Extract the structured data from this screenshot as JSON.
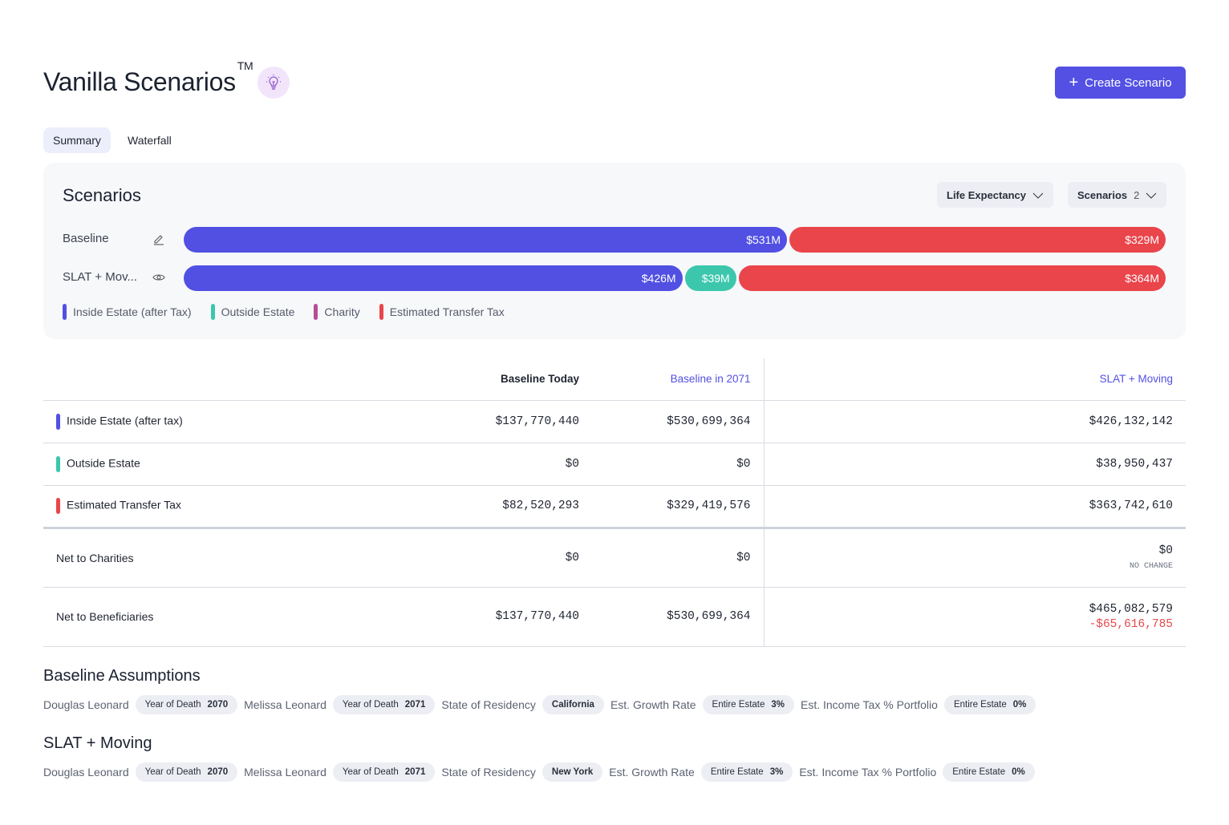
{
  "header": {
    "title": "Vanilla Scenarios",
    "tm": "TM",
    "create_label": "Create Scenario"
  },
  "tabs": [
    {
      "label": "Summary",
      "active": true
    },
    {
      "label": "Waterfall",
      "active": false
    }
  ],
  "panel": {
    "title": "Scenarios",
    "life_expectancy": "Life Expectancy",
    "scenarios_label": "Scenarios",
    "scenarios_count": "2",
    "rows": [
      {
        "label": "Baseline",
        "icon": "pencil-icon",
        "segments": [
          {
            "value": 531,
            "label": "$531M",
            "color": "#5150e3"
          },
          {
            "value": 329,
            "label": "$329M",
            "color": "#e9454b"
          }
        ]
      },
      {
        "label": "SLAT + Mov...",
        "icon": "eye-icon",
        "segments": [
          {
            "value": 426,
            "label": "$426M",
            "color": "#5150e3"
          },
          {
            "value": 39,
            "label": "$39M",
            "color": "#3cc7ad"
          },
          {
            "value": 364,
            "label": "$364M",
            "color": "#e9454b"
          }
        ]
      }
    ],
    "legend": [
      {
        "label": "Inside Estate (after Tax)",
        "color": "#5150e3"
      },
      {
        "label": "Outside Estate",
        "color": "#3cc7ad"
      },
      {
        "label": "Charity",
        "color": "#b44f96"
      },
      {
        "label": "Estimated Transfer Tax",
        "color": "#e9454b"
      }
    ]
  },
  "table": {
    "headers": [
      "Baseline Today",
      "Baseline in 2071",
      "SLAT + Moving"
    ],
    "rows": [
      {
        "label": "Inside Estate (after tax)",
        "color": "#5150e3",
        "values": [
          "$137,770,440",
          "$530,699,364",
          "$426,132,142"
        ]
      },
      {
        "label": "Outside Estate",
        "color": "#3cc7ad",
        "values": [
          "$0",
          "$0",
          "$38,950,437"
        ]
      },
      {
        "label": "Estimated Transfer Tax",
        "color": "#e9454b",
        "values": [
          "$82,520,293",
          "$329,419,576",
          "$363,742,610"
        ]
      }
    ],
    "net_charities": {
      "label": "Net to Charities",
      "values": [
        "$0",
        "$0",
        "$0"
      ],
      "note": "NO CHANGE"
    },
    "net_beneficiaries": {
      "label": "Net to Beneficiaries",
      "values": [
        "$137,770,440",
        "$530,699,364",
        "$465,082,579"
      ],
      "delta": "-$65,616,785"
    }
  },
  "assumptions": [
    {
      "title": "Baseline Assumptions",
      "p1": "Douglas Leonard",
      "yod": "Year of Death",
      "y1": "2070",
      "p2": "Melissa Leonard",
      "y2": "2071",
      "res_label": "State of Residency",
      "res": "California",
      "growth_label": "Est. Growth Rate",
      "estate": "Entire Estate",
      "growth": "3%",
      "inc_label": "Est. Income Tax % Portfolio",
      "inc": "0%"
    },
    {
      "title": "SLAT + Moving",
      "p1": "Douglas Leonard",
      "yod": "Year of Death",
      "y1": "2070",
      "p2": "Melissa Leonard",
      "y2": "2071",
      "res_label": "State of Residency",
      "res": "New York",
      "growth_label": "Est. Growth Rate",
      "estate": "Entire Estate",
      "growth": "3%",
      "inc_label": "Est. Income Tax % Portfolio",
      "inc": "0%"
    }
  ]
}
